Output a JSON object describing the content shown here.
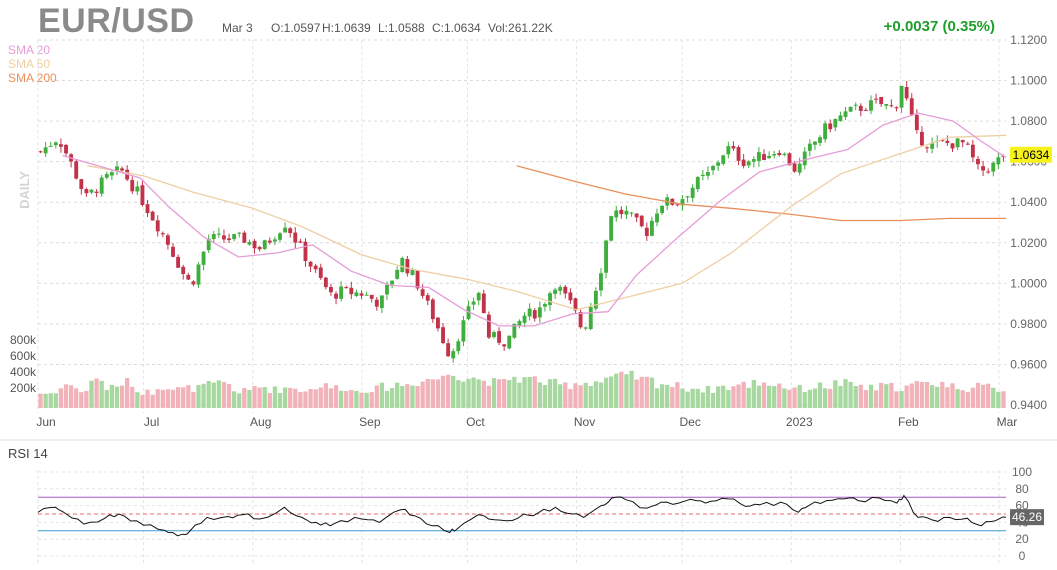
{
  "header": {
    "symbol": "EUR/USD",
    "date": "Mar 3",
    "open": "O:1.0597",
    "high": "H:1.0639",
    "low": "L:1.0588",
    "close": "C:1.0634",
    "volume": "Vol:261.22K",
    "change": "+0.0037 (0.35%)"
  },
  "legend": {
    "sma20": "SMA 20",
    "sma50": "SMA 50",
    "sma200": "SMA 200"
  },
  "colors": {
    "up": "#3fae3f",
    "down": "#c2334a",
    "vol_up": "#a6d8a0",
    "vol_down": "#f1b2b9",
    "sma20": "#e59cd7",
    "sma50": "#efcfa2",
    "sma200": "#e9905a",
    "rsi_line": "#111111",
    "rsi_upper": "#a45ec4",
    "rsi_lower": "#3a9bd4",
    "change": "#1f9e2c",
    "price_label_bg": "#f8f21c"
  },
  "chart_data": [
    {
      "type": "candlestick",
      "title": "EUR/USD",
      "period_label": "DAILY",
      "price_axis": {
        "ticks": [
          "1.1200",
          "1.1000",
          "1.0800",
          "1.0600",
          "1.0400",
          "1.0200",
          "1.0000",
          "0.9800",
          "0.9600",
          "0.9400"
        ],
        "range": [
          0.94,
          1.12
        ]
      },
      "volume_axis": {
        "ticks": [
          "800k",
          "600k",
          "400k",
          "200k"
        ]
      },
      "x_labels": [
        "Jun",
        "Jul",
        "Aug",
        "Sep",
        "Oct",
        "Nov",
        "Dec",
        "2023",
        "Feb",
        "Mar"
      ],
      "last_price": "1.0634",
      "close_path": [
        [
          "2022-06-01",
          1.065
        ],
        [
          "2022-06-06",
          1.072
        ],
        [
          "2022-06-09",
          1.062
        ],
        [
          "2022-06-14",
          1.042
        ],
        [
          "2022-06-20",
          1.052
        ],
        [
          "2022-06-24",
          1.056
        ],
        [
          "2022-06-29",
          1.044
        ],
        [
          "2022-07-05",
          1.027
        ],
        [
          "2022-07-08",
          1.018
        ],
        [
          "2022-07-12",
          1.004
        ],
        [
          "2022-07-14",
          0.999
        ],
        [
          "2022-07-19",
          1.022
        ],
        [
          "2022-07-25",
          1.022
        ],
        [
          "2022-07-29",
          1.022
        ],
        [
          "2022-08-03",
          1.017
        ],
        [
          "2022-08-10",
          1.03
        ],
        [
          "2022-08-15",
          1.015
        ],
        [
          "2022-08-19",
          1.004
        ],
        [
          "2022-08-23",
          0.994
        ],
        [
          "2022-08-26",
          0.996
        ],
        [
          "2022-09-01",
          0.995
        ],
        [
          "2022-09-06",
          0.99
        ],
        [
          "2022-09-12",
          1.012
        ],
        [
          "2022-09-16",
          1.002
        ],
        [
          "2022-09-21",
          0.984
        ],
        [
          "2022-09-26",
          0.964
        ],
        [
          "2022-09-28",
          0.973
        ],
        [
          "2022-10-04",
          0.997
        ],
        [
          "2022-10-07",
          0.974
        ],
        [
          "2022-10-12",
          0.971
        ],
        [
          "2022-10-17",
          0.984
        ],
        [
          "2022-10-21",
          0.986
        ],
        [
          "2022-10-26",
          1.0
        ],
        [
          "2022-10-31",
          0.988
        ],
        [
          "2022-11-03",
          0.976
        ],
        [
          "2022-11-08",
          1.007
        ],
        [
          "2022-11-11",
          1.035
        ],
        [
          "2022-11-15",
          1.035
        ],
        [
          "2022-11-21",
          1.025
        ],
        [
          "2022-11-25",
          1.04
        ],
        [
          "2022-11-30",
          1.04
        ],
        [
          "2022-12-05",
          1.049
        ],
        [
          "2022-12-09",
          1.054
        ],
        [
          "2022-12-14",
          1.067
        ],
        [
          "2022-12-19",
          1.06
        ],
        [
          "2022-12-23",
          1.062
        ],
        [
          "2022-12-29",
          1.066
        ],
        [
          "2023-01-03",
          1.055
        ],
        [
          "2023-01-06",
          1.065
        ],
        [
          "2023-01-11",
          1.076
        ],
        [
          "2023-01-16",
          1.083
        ],
        [
          "2023-01-20",
          1.086
        ],
        [
          "2023-01-26",
          1.089
        ],
        [
          "2023-01-31",
          1.086
        ],
        [
          "2023-02-02",
          1.099
        ],
        [
          "2023-02-06",
          1.073
        ],
        [
          "2023-02-10",
          1.068
        ],
        [
          "2023-02-15",
          1.069
        ],
        [
          "2023-02-20",
          1.069
        ],
        [
          "2023-02-24",
          1.055
        ],
        [
          "2023-02-28",
          1.058
        ],
        [
          "2023-03-03",
          1.0634
        ]
      ],
      "volume_levels": [
        0.35,
        0.55,
        0.42,
        0.66,
        0.48,
        0.6,
        0.38,
        0.52,
        0.45,
        0.47,
        0.54,
        0.58,
        0.4,
        0.5,
        0.44,
        0.48,
        0.43,
        0.52,
        0.49,
        0.41,
        0.45,
        0.5,
        0.56,
        0.62,
        0.7,
        0.82,
        0.75,
        0.66,
        0.6,
        0.72,
        0.68,
        0.58,
        0.55,
        0.6,
        0.63,
        0.71,
        0.74,
        0.66,
        0.58,
        0.52,
        0.47,
        0.44,
        0.5,
        0.55,
        0.61,
        0.57,
        0.49,
        0.46,
        0.52,
        0.58,
        0.53,
        0.47,
        0.51,
        0.49,
        0.56,
        0.6,
        0.52,
        0.47,
        0.5,
        0.45
      ],
      "sma20_path": [
        [
          "2022-06-08",
          1.063
        ],
        [
          "2022-06-20",
          1.057
        ],
        [
          "2022-06-30",
          1.052
        ],
        [
          "2022-07-08",
          1.038
        ],
        [
          "2022-07-18",
          1.023
        ],
        [
          "2022-07-28",
          1.013
        ],
        [
          "2022-08-08",
          1.015
        ],
        [
          "2022-08-18",
          1.019
        ],
        [
          "2022-08-29",
          1.006
        ],
        [
          "2022-09-09",
          0.999
        ],
        [
          "2022-09-20",
          0.998
        ],
        [
          "2022-09-30",
          0.987
        ],
        [
          "2022-10-10",
          0.979
        ],
        [
          "2022-10-20",
          0.979
        ],
        [
          "2022-10-31",
          0.985
        ],
        [
          "2022-11-10",
          0.986
        ],
        [
          "2022-11-18",
          1.004
        ],
        [
          "2022-11-30",
          1.023
        ],
        [
          "2022-12-12",
          1.041
        ],
        [
          "2022-12-23",
          1.055
        ],
        [
          "2023-01-05",
          1.061
        ],
        [
          "2023-01-17",
          1.066
        ],
        [
          "2023-01-27",
          1.078
        ],
        [
          "2023-02-06",
          1.084
        ],
        [
          "2023-02-16",
          1.08
        ],
        [
          "2023-02-24",
          1.07
        ],
        [
          "2023-03-03",
          1.062
        ]
      ],
      "sma50_path": [
        [
          "2022-06-15",
          1.058
        ],
        [
          "2022-07-01",
          1.053
        ],
        [
          "2022-07-15",
          1.045
        ],
        [
          "2022-08-01",
          1.037
        ],
        [
          "2022-08-15",
          1.028
        ],
        [
          "2022-09-01",
          1.014
        ],
        [
          "2022-09-15",
          1.007
        ],
        [
          "2022-10-01",
          1.002
        ],
        [
          "2022-10-15",
          0.996
        ],
        [
          "2022-11-01",
          0.987
        ],
        [
          "2022-11-15",
          0.993
        ],
        [
          "2022-12-01",
          1.0
        ],
        [
          "2022-12-15",
          1.015
        ],
        [
          "2023-01-01",
          1.038
        ],
        [
          "2023-01-15",
          1.054
        ],
        [
          "2023-02-01",
          1.064
        ],
        [
          "2023-02-15",
          1.072
        ],
        [
          "2023-03-03",
          1.073
        ]
      ],
      "sma200_path": [
        [
          "2022-10-15",
          1.058
        ],
        [
          "2022-11-01",
          1.05
        ],
        [
          "2022-11-15",
          1.044
        ],
        [
          "2022-12-01",
          1.039
        ],
        [
          "2022-12-15",
          1.037
        ],
        [
          "2023-01-01",
          1.034
        ],
        [
          "2023-01-15",
          1.031
        ],
        [
          "2023-02-01",
          1.031
        ],
        [
          "2023-02-15",
          1.032
        ],
        [
          "2023-03-03",
          1.032
        ]
      ]
    },
    {
      "type": "line",
      "title": "RSI 14",
      "y_axis": {
        "ticks": [
          "100",
          "80",
          "60",
          "40",
          "20",
          "0"
        ],
        "range": [
          0,
          100
        ]
      },
      "upper_band": 70,
      "lower_band": 30,
      "mid_level": 50,
      "last_value": "46.26",
      "values": [
        [
          "2022-06-01",
          52
        ],
        [
          "2022-06-06",
          58
        ],
        [
          "2022-06-09",
          50
        ],
        [
          "2022-06-14",
          38
        ],
        [
          "2022-06-20",
          45
        ],
        [
          "2022-06-24",
          50
        ],
        [
          "2022-06-29",
          42
        ],
        [
          "2022-07-05",
          32
        ],
        [
          "2022-07-08",
          28
        ],
        [
          "2022-07-12",
          26
        ],
        [
          "2022-07-14",
          29
        ],
        [
          "2022-07-19",
          46
        ],
        [
          "2022-07-25",
          47
        ],
        [
          "2022-07-29",
          49
        ],
        [
          "2022-08-03",
          44
        ],
        [
          "2022-08-10",
          58
        ],
        [
          "2022-08-15",
          46
        ],
        [
          "2022-08-19",
          40
        ],
        [
          "2022-08-23",
          36
        ],
        [
          "2022-08-26",
          42
        ],
        [
          "2022-09-01",
          44
        ],
        [
          "2022-09-06",
          40
        ],
        [
          "2022-09-12",
          55
        ],
        [
          "2022-09-16",
          48
        ],
        [
          "2022-09-21",
          36
        ],
        [
          "2022-09-26",
          28
        ],
        [
          "2022-09-28",
          32
        ],
        [
          "2022-10-04",
          49
        ],
        [
          "2022-10-07",
          44
        ],
        [
          "2022-10-12",
          42
        ],
        [
          "2022-10-17",
          50
        ],
        [
          "2022-10-21",
          51
        ],
        [
          "2022-10-26",
          58
        ],
        [
          "2022-10-31",
          50
        ],
        [
          "2022-11-03",
          46
        ],
        [
          "2022-11-08",
          60
        ],
        [
          "2022-11-11",
          69
        ],
        [
          "2022-11-15",
          67
        ],
        [
          "2022-11-21",
          57
        ],
        [
          "2022-11-25",
          64
        ],
        [
          "2022-11-30",
          63
        ],
        [
          "2022-12-05",
          66
        ],
        [
          "2022-12-09",
          65
        ],
        [
          "2022-12-14",
          68
        ],
        [
          "2022-12-19",
          59
        ],
        [
          "2022-12-23",
          61
        ],
        [
          "2022-12-29",
          64
        ],
        [
          "2023-01-03",
          52
        ],
        [
          "2023-01-06",
          60
        ],
        [
          "2023-01-11",
          66
        ],
        [
          "2023-01-16",
          68
        ],
        [
          "2023-01-20",
          66
        ],
        [
          "2023-01-26",
          69
        ],
        [
          "2023-01-31",
          63
        ],
        [
          "2023-02-02",
          72
        ],
        [
          "2023-02-06",
          46
        ],
        [
          "2023-02-10",
          43
        ],
        [
          "2023-02-15",
          46
        ],
        [
          "2023-02-20",
          45
        ],
        [
          "2023-02-24",
          36
        ],
        [
          "2023-02-28",
          42
        ],
        [
          "2023-03-03",
          46.26
        ]
      ]
    }
  ]
}
